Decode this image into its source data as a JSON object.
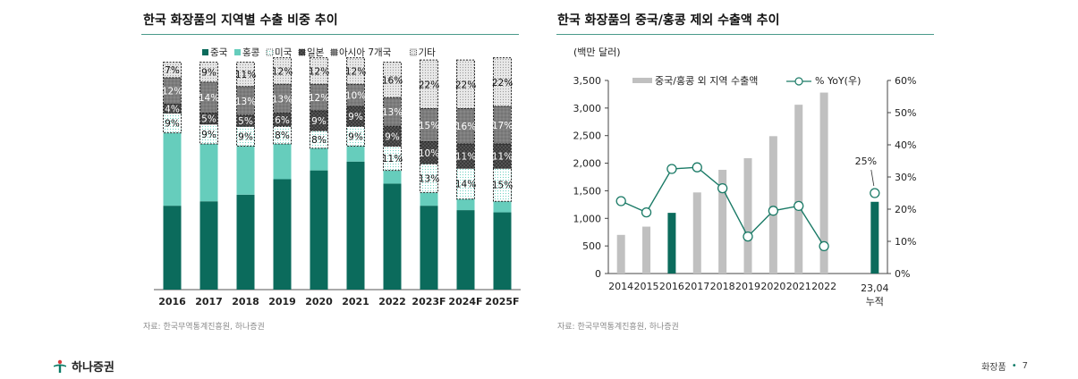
{
  "left_panel": {
    "title": "한국 화장품의 지역별 수출 비중 추이",
    "source": "자료: 한국무역통계진흥원, 하나증권"
  },
  "right_panel": {
    "title": "한국 화장품의 중국/홍콩 제외 수출액 추이",
    "source": "자료: 한국무역통계진흥원, 하나증권"
  },
  "footer": {
    "brand": "하나증권",
    "section": "화장품",
    "page": "7"
  },
  "colors": {
    "china": "#0b6b5c",
    "hongkong": "#66cdbc",
    "grey_bar": "#c0c0c0",
    "teal_bar": "#0b6b5c",
    "line": "#1a7a66",
    "rule": "#4a9a8a"
  },
  "chart_data": [
    {
      "type": "bar",
      "stacked": true,
      "title": "",
      "categories": [
        "2016",
        "2017",
        "2018",
        "2019",
        "2020",
        "2021",
        "2022",
        "2023F",
        "2024F",
        "2025F"
      ],
      "series": [
        {
          "name": "중국",
          "pattern": "solid-dark",
          "values": [
            38,
            40,
            43,
            50,
            54,
            58,
            48,
            38,
            36,
            35
          ]
        },
        {
          "name": "홍콩",
          "pattern": "solid-light",
          "values": [
            33,
            26,
            22,
            16,
            10,
            7,
            6,
            6,
            5,
            5
          ]
        },
        {
          "name": "미국",
          "pattern": "dotted-light",
          "values": [
            9,
            9,
            9,
            8,
            8,
            9,
            11,
            13,
            14,
            15
          ]
        },
        {
          "name": "일본",
          "pattern": "dark-pattern",
          "values": [
            4,
            5,
            5,
            6,
            9,
            9,
            9,
            10,
            11,
            11
          ]
        },
        {
          "name": "아시아 7개국",
          "pattern": "grey-pattern",
          "values": [
            12,
            14,
            13,
            13,
            12,
            10,
            13,
            15,
            16,
            17
          ]
        },
        {
          "name": "기타",
          "pattern": "dotted-grey",
          "values": [
            7,
            9,
            11,
            12,
            12,
            12,
            16,
            22,
            22,
            22
          ]
        }
      ],
      "labels": [
        [
          "7%",
          "12%",
          "4%",
          "9%"
        ],
        [
          "9%",
          "14%",
          "5%",
          "9%"
        ],
        [
          "11%",
          "13%",
          "5%",
          "9%"
        ],
        [
          "12%",
          "13%",
          "6%",
          "8%"
        ],
        [
          "12%",
          "12%",
          "9%",
          "8%"
        ],
        [
          "12%",
          "10%",
          "9%",
          "9%"
        ],
        [
          "16%",
          "13%",
          "9%",
          "11%"
        ],
        [
          "22%",
          "15%",
          "10%",
          "13%"
        ],
        [
          "22%",
          "16%",
          "11%",
          "14%"
        ],
        [
          "22%",
          "17%",
          "11%",
          "15%"
        ]
      ],
      "legend": [
        "중국",
        "홍콩",
        "미국",
        "일본",
        "아시아 7개국",
        "기타"
      ],
      "ylim": [
        0,
        100
      ]
    },
    {
      "type": "bar+line",
      "title": "",
      "unit_label": "(백만 달러)",
      "categories": [
        "2014",
        "2015",
        "2016",
        "2017",
        "2018",
        "2019",
        "2020",
        "2021",
        "2022",
        "",
        [
          "23,04",
          "누적"
        ]
      ],
      "bar_series": {
        "name": "중국/홍콩 외 지역 수출액",
        "values": [
          700,
          850,
          1100,
          1470,
          1880,
          2090,
          2490,
          3060,
          3280,
          null,
          1300
        ],
        "highlight": [
          2,
          10
        ]
      },
      "line_series": {
        "name": "% YoY(우)",
        "values": [
          22.5,
          19,
          32.5,
          33,
          26.5,
          11.5,
          19.5,
          21,
          8.5,
          null,
          25
        ]
      },
      "point_label": "25%",
      "left_axis": {
        "min": 0,
        "max": 3500,
        "ticks": [
          "0",
          "500",
          "1,000",
          "1,500",
          "2,000",
          "2,500",
          "3,000",
          "3,500"
        ]
      },
      "right_axis": {
        "min": 0,
        "max": 60,
        "ticks": [
          "0%",
          "10%",
          "20%",
          "30%",
          "40%",
          "50%",
          "60%"
        ]
      }
    }
  ]
}
